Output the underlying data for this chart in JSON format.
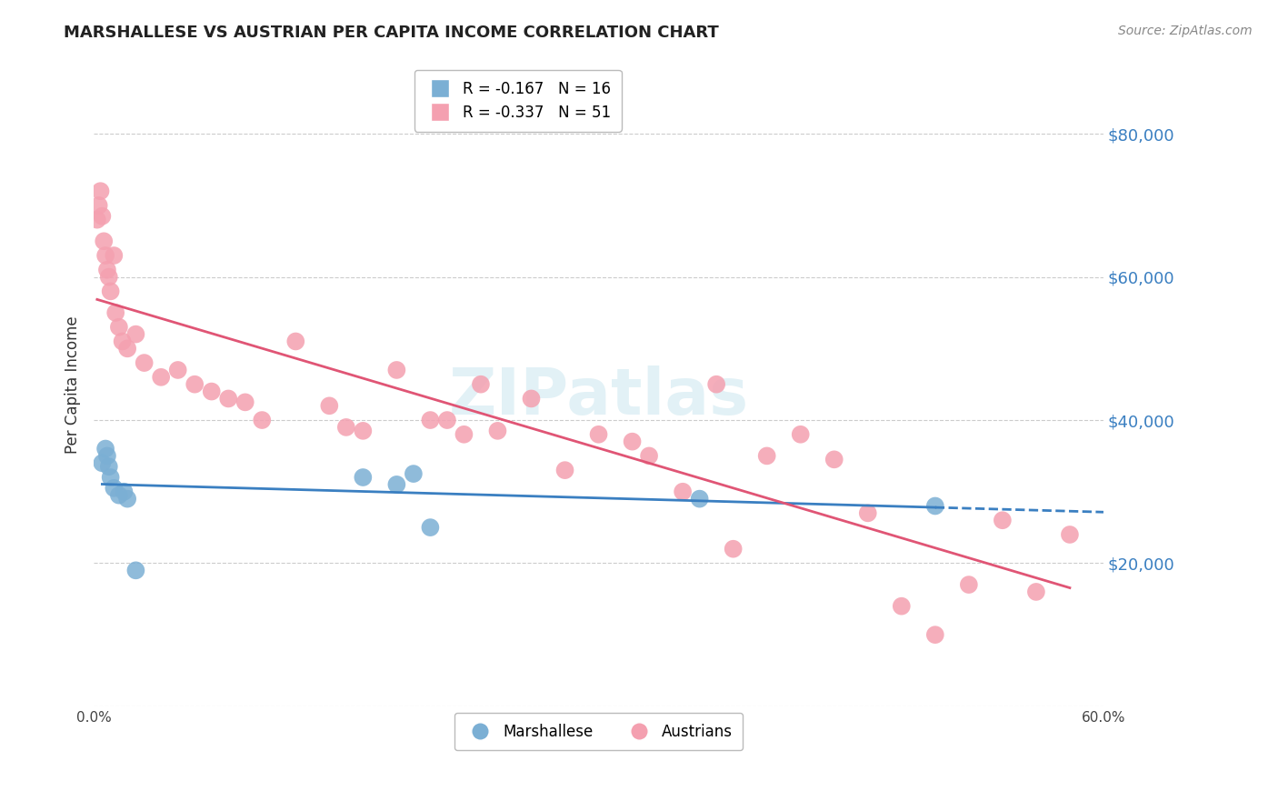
{
  "title": "MARSHALLESE VS AUSTRIAN PER CAPITA INCOME CORRELATION CHART",
  "source": "Source: ZipAtlas.com",
  "ylabel": "Per Capita Income",
  "xlim": [
    0.0,
    0.6
  ],
  "ylim": [
    0,
    90000
  ],
  "yticks": [
    0,
    20000,
    40000,
    60000,
    80000
  ],
  "xticks": [
    0.0,
    0.1,
    0.2,
    0.3,
    0.4,
    0.5,
    0.6
  ],
  "marshallese_color": "#7bafd4",
  "austrians_color": "#f4a0b0",
  "marshallese_line_color": "#3a7fc1",
  "austrians_line_color": "#e05575",
  "legend_label_marshallese": "Marshallese",
  "legend_label_austrians": "Austrians",
  "marshallese_R": -0.167,
  "marshallese_N": 16,
  "austrians_R": -0.337,
  "austrians_N": 51,
  "background_color": "#ffffff",
  "grid_color": "#cccccc",
  "watermark": "ZIPatlas",
  "marshallese_x": [
    0.005,
    0.007,
    0.008,
    0.009,
    0.01,
    0.012,
    0.015,
    0.018,
    0.02,
    0.025,
    0.16,
    0.18,
    0.19,
    0.2,
    0.36,
    0.5
  ],
  "marshallese_y": [
    34000,
    36000,
    35000,
    33500,
    32000,
    30500,
    29500,
    30000,
    29000,
    19000,
    32000,
    31000,
    32500,
    25000,
    29000,
    28000
  ],
  "austrians_x": [
    0.002,
    0.003,
    0.004,
    0.005,
    0.006,
    0.007,
    0.008,
    0.009,
    0.01,
    0.012,
    0.013,
    0.015,
    0.017,
    0.02,
    0.025,
    0.03,
    0.04,
    0.05,
    0.06,
    0.07,
    0.08,
    0.09,
    0.1,
    0.12,
    0.14,
    0.15,
    0.16,
    0.18,
    0.2,
    0.21,
    0.22,
    0.23,
    0.24,
    0.26,
    0.28,
    0.3,
    0.32,
    0.33,
    0.35,
    0.37,
    0.38,
    0.4,
    0.42,
    0.44,
    0.46,
    0.48,
    0.5,
    0.52,
    0.54,
    0.56,
    0.58
  ],
  "austrians_y": [
    68000,
    70000,
    72000,
    68500,
    65000,
    63000,
    61000,
    60000,
    58000,
    63000,
    55000,
    53000,
    51000,
    50000,
    52000,
    48000,
    46000,
    47000,
    45000,
    44000,
    43000,
    42500,
    40000,
    51000,
    42000,
    39000,
    38500,
    47000,
    40000,
    40000,
    38000,
    45000,
    38500,
    43000,
    33000,
    38000,
    37000,
    35000,
    30000,
    45000,
    22000,
    35000,
    38000,
    34500,
    27000,
    14000,
    10000,
    17000,
    26000,
    16000,
    24000
  ]
}
